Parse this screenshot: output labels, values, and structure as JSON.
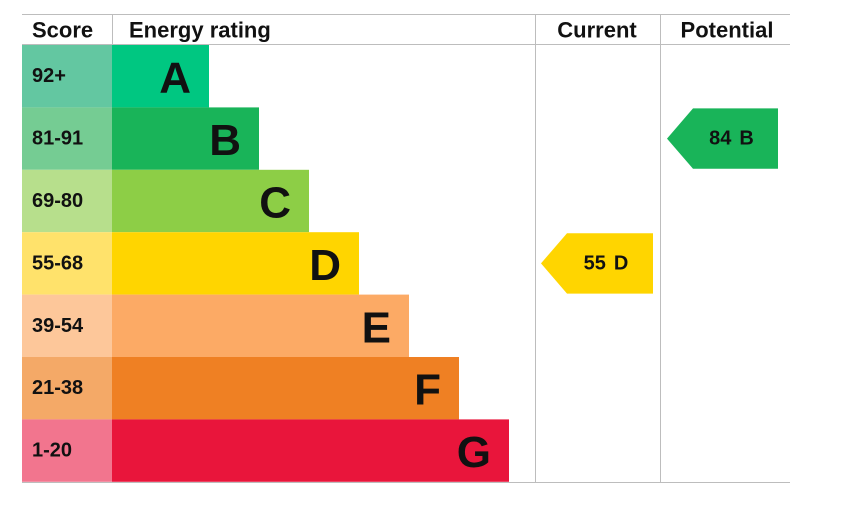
{
  "header": {
    "score": "Score",
    "rating": "Energy rating",
    "current": "Current",
    "potential": "Potential"
  },
  "bands": [
    {
      "score": "92+",
      "letter": "A",
      "color": "#00c781",
      "score_color": "#63c7a1"
    },
    {
      "score": "81-91",
      "letter": "B",
      "color": "#19b459",
      "score_color": "#75cc93"
    },
    {
      "score": "69-80",
      "letter": "C",
      "color": "#8dce46",
      "score_color": "#b7df8c"
    },
    {
      "score": "55-68",
      "letter": "D",
      "color": "#ffd500",
      "score_color": "#ffe26b"
    },
    {
      "score": "39-54",
      "letter": "E",
      "color": "#fcaa65",
      "score_color": "#fdc79a"
    },
    {
      "score": "21-38",
      "letter": "F",
      "color": "#ef8023",
      "score_color": "#f4a967"
    },
    {
      "score": "1-20",
      "letter": "G",
      "color": "#e9153b",
      "score_color": "#f2758e"
    }
  ],
  "current": {
    "value": 55,
    "letter": "D"
  },
  "potential": {
    "value": 84,
    "letter": "B"
  }
}
